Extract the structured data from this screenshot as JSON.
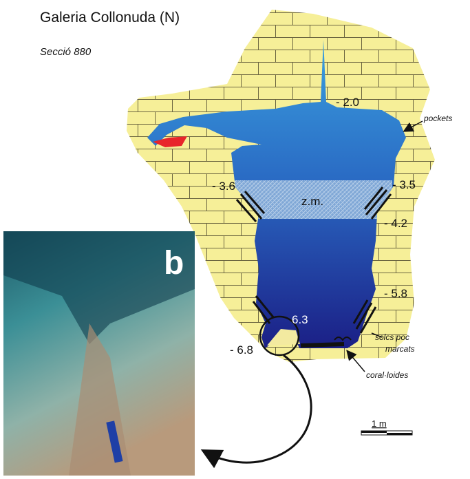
{
  "title": "Galeria Collonuda (N)",
  "subtitle": "Secció 880",
  "depths": [
    "- 2.0",
    "- 3.6",
    "- 3.5",
    "- 4.2",
    "- 5.8",
    "6.3",
    "- 6.8"
  ],
  "labels": {
    "zone": "z.m.",
    "pockets": "pockets",
    "grooves": [
      "solcs poc",
      "marcats"
    ],
    "coral": "coral·loides"
  },
  "photo_label": "b",
  "scale": "1 m"
}
